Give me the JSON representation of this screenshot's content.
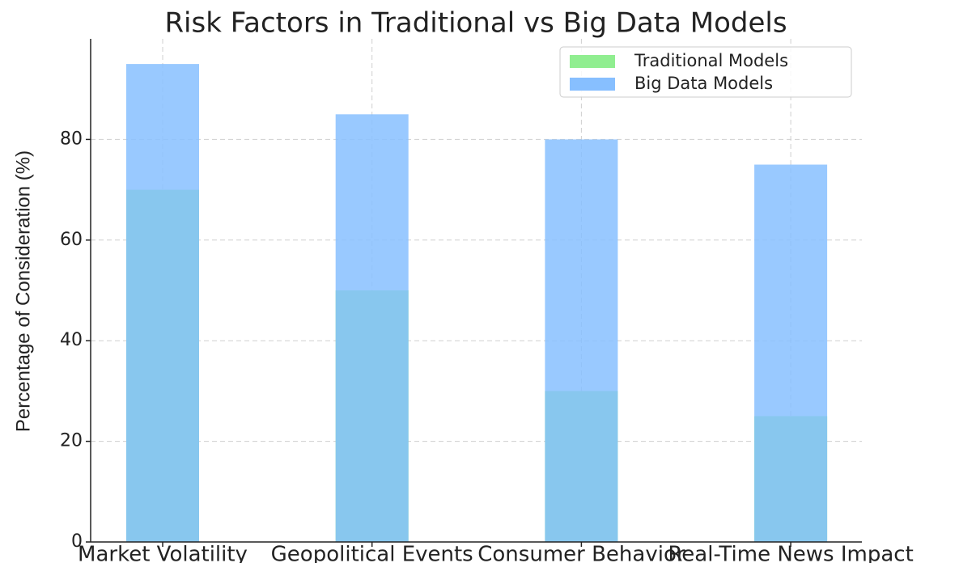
{
  "chart_data": {
    "type": "bar",
    "title": "Risk Factors in Traditional vs Big Data Models",
    "y_label": "Percentage of Consideration (%)",
    "categories": [
      "Market Volatility",
      "Geopolitical Events",
      "Consumer Behavior",
      "Real-Time News Impact"
    ],
    "series": [
      {
        "name": "Traditional Models",
        "color": "#90ee90",
        "values": [
          70,
          50,
          30,
          25
        ]
      },
      {
        "name": "Big Data Models",
        "color": "#87bfff",
        "values": [
          95,
          85,
          80,
          75
        ]
      }
    ],
    "ylim": [
      0,
      100
    ],
    "yticks": [
      0,
      20,
      40,
      60,
      80
    ],
    "grid": true,
    "legend": "upper right"
  }
}
